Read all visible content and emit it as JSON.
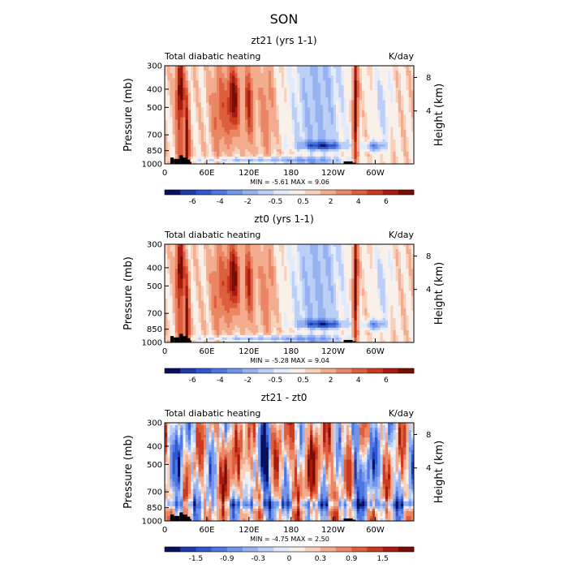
{
  "figure": {
    "title": "SON"
  },
  "chart_data": [
    {
      "type": "heatmap",
      "title": "zt21 (yrs 1-1)",
      "left_label": "Total diabatic heating",
      "right_label": "K/day",
      "ylabel": "Pressure (mb)",
      "ylabel_right": "Height (km)",
      "x_ticks": [
        "0",
        "60E",
        "120E",
        "180",
        "120W",
        "60W"
      ],
      "y_ticks": [
        "300",
        "400",
        "500",
        "700",
        "850",
        "1000"
      ],
      "height_ticks": [
        "8",
        "4"
      ],
      "ylim": [
        1000,
        300
      ],
      "minmax_text": "MIN =   -5.61   MAX =    9.06",
      "min": -5.61,
      "max": 9.06,
      "colorbar": {
        "labels": [
          "-6",
          "-4",
          "-2",
          "-0.5",
          "0.5",
          "2",
          "4",
          "6"
        ],
        "colors": [
          "#08105e",
          "#1e3aa8",
          "#2f58cf",
          "#4d77e0",
          "#7294ea",
          "#97b2f1",
          "#bccff7",
          "#e2ebfb",
          "#faf0ea",
          "#f8d1bd",
          "#f3ac8e",
          "#ea8663",
          "#dd5f3e",
          "#c93a1f",
          "#a71b10",
          "#7a0c06"
        ]
      }
    },
    {
      "type": "heatmap",
      "title": "zt0 (yrs 1-1)",
      "left_label": "Total diabatic heating",
      "right_label": "K/day",
      "ylabel": "Pressure (mb)",
      "ylabel_right": "Height (km)",
      "x_ticks": [
        "0",
        "60E",
        "120E",
        "180",
        "120W",
        "60W"
      ],
      "y_ticks": [
        "300",
        "400",
        "500",
        "700",
        "850",
        "1000"
      ],
      "height_ticks": [
        "8",
        "4"
      ],
      "ylim": [
        1000,
        300
      ],
      "minmax_text": "MIN =   -5.28   MAX =    9.04",
      "min": -5.28,
      "max": 9.04,
      "colorbar": {
        "labels": [
          "-6",
          "-4",
          "-2",
          "-0.5",
          "0.5",
          "2",
          "4",
          "6"
        ],
        "colors": [
          "#08105e",
          "#1e3aa8",
          "#2f58cf",
          "#4d77e0",
          "#7294ea",
          "#97b2f1",
          "#bccff7",
          "#e2ebfb",
          "#faf0ea",
          "#f8d1bd",
          "#f3ac8e",
          "#ea8663",
          "#dd5f3e",
          "#c93a1f",
          "#a71b10",
          "#7a0c06"
        ]
      }
    },
    {
      "type": "heatmap",
      "title": "zt21 - zt0",
      "left_label": "Total diabatic heating",
      "right_label": "K/day",
      "ylabel": "Pressure (mb)",
      "ylabel_right": "Height (km)",
      "x_ticks": [
        "0",
        "60E",
        "120E",
        "180",
        "120W",
        "60W"
      ],
      "y_ticks": [
        "300",
        "400",
        "500",
        "700",
        "850",
        "1000"
      ],
      "height_ticks": [
        "8",
        "4"
      ],
      "ylim": [
        1000,
        300
      ],
      "minmax_text": "MIN =   -4.75   MAX =    2.50",
      "min": -4.75,
      "max": 2.5,
      "colorbar": {
        "labels": [
          "-1.5",
          "-0.9",
          "-0.3",
          "0",
          "0.3",
          "0.9",
          "1.5"
        ],
        "colors": [
          "#08105e",
          "#1e3aa8",
          "#2f58cf",
          "#4d77e0",
          "#7294ea",
          "#97b2f1",
          "#bccff7",
          "#e2ebfb",
          "#faf0ea",
          "#f8d1bd",
          "#f3ac8e",
          "#ea8663",
          "#dd5f3e",
          "#c93a1f",
          "#a71b10",
          "#7a0c06"
        ]
      }
    }
  ]
}
